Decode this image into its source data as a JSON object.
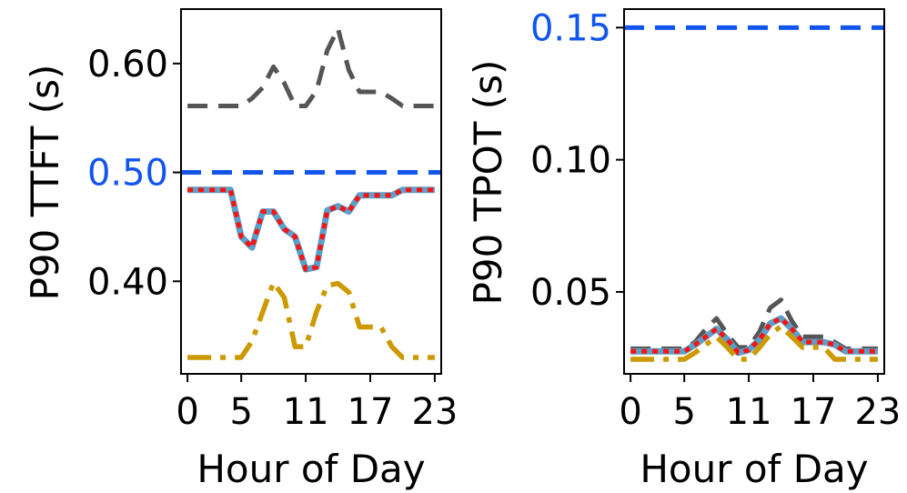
{
  "chart_data": [
    {
      "type": "line",
      "ylabel": "P90 TTFT (s)",
      "xlabel": "Hour of Day",
      "xlim": [
        -0.6,
        23.6
      ],
      "ylim": [
        0.315,
        0.65
      ],
      "xticks": [
        0,
        5,
        11,
        17,
        23
      ],
      "xtick_labels": [
        "0",
        "5",
        "11",
        "17",
        "23"
      ],
      "yticks": [
        0.4,
        0.5,
        0.6
      ],
      "ytick_labels": [
        "0.40",
        "0.50",
        "0.60"
      ],
      "highlight_tick": "0.50",
      "reference_line": {
        "y": 0.5,
        "color": "#1155ee"
      },
      "series": [
        {
          "name": "dark-dashed",
          "color": "#555555",
          "style": "dash",
          "x": [
            0,
            1,
            2,
            3,
            4,
            5,
            6,
            7,
            8,
            9,
            10,
            11,
            12,
            13,
            14,
            15,
            16,
            17,
            18,
            19,
            20,
            21,
            22,
            23
          ],
          "y": [
            0.561,
            0.561,
            0.561,
            0.561,
            0.561,
            0.561,
            0.568,
            0.578,
            0.597,
            0.582,
            0.561,
            0.561,
            0.575,
            0.612,
            0.632,
            0.594,
            0.574,
            0.574,
            0.574,
            0.568,
            0.561,
            0.561,
            0.561,
            0.561
          ]
        },
        {
          "name": "red-dotted",
          "color": "#ff1111",
          "style": "dot",
          "x": [
            0,
            1,
            2,
            3,
            4,
            5,
            6,
            7,
            8,
            9,
            10,
            11,
            12,
            13,
            14,
            15,
            16,
            17,
            18,
            19,
            20,
            21,
            22,
            23
          ],
          "y": [
            0.484,
            0.484,
            0.484,
            0.484,
            0.484,
            0.441,
            0.431,
            0.464,
            0.464,
            0.448,
            0.441,
            0.411,
            0.413,
            0.465,
            0.469,
            0.464,
            0.479,
            0.479,
            0.479,
            0.479,
            0.484,
            0.484,
            0.484,
            0.484
          ]
        },
        {
          "name": "blue-solid",
          "color": "#5aa0c8",
          "style": "solid",
          "x": [
            0,
            1,
            2,
            3,
            4,
            5,
            6,
            7,
            8,
            9,
            10,
            11,
            12,
            13,
            14,
            15,
            16,
            17,
            18,
            19,
            20,
            21,
            22,
            23
          ],
          "y": [
            0.484,
            0.484,
            0.484,
            0.484,
            0.484,
            0.441,
            0.431,
            0.464,
            0.464,
            0.448,
            0.441,
            0.411,
            0.413,
            0.465,
            0.469,
            0.464,
            0.479,
            0.479,
            0.479,
            0.479,
            0.484,
            0.484,
            0.484,
            0.484
          ]
        },
        {
          "name": "gold-dashdot",
          "color": "#cc9900",
          "style": "dashdot",
          "x": [
            0,
            1,
            2,
            3,
            4,
            5,
            6,
            7,
            8,
            9,
            10,
            11,
            12,
            13,
            14,
            15,
            16,
            17,
            18,
            19,
            20,
            21,
            22,
            23
          ],
          "y": [
            0.33,
            0.33,
            0.33,
            0.33,
            0.33,
            0.33,
            0.345,
            0.372,
            0.399,
            0.385,
            0.34,
            0.34,
            0.372,
            0.396,
            0.398,
            0.39,
            0.358,
            0.358,
            0.358,
            0.34,
            0.33,
            0.33,
            0.33,
            0.33
          ]
        }
      ]
    },
    {
      "type": "line",
      "ylabel": "P90 TPOT (s)",
      "xlabel": "Hour of Day",
      "xlim": [
        -0.6,
        23.6
      ],
      "ylim": [
        0.019,
        0.157
      ],
      "xticks": [
        0,
        5,
        11,
        17,
        23
      ],
      "xtick_labels": [
        "0",
        "5",
        "11",
        "17",
        "23"
      ],
      "yticks": [
        0.05,
        0.1,
        0.15
      ],
      "ytick_labels": [
        "0.05",
        "0.10",
        "0.15"
      ],
      "highlight_tick": "0.15",
      "reference_line": {
        "y": 0.15,
        "color": "#1155ee"
      },
      "series": [
        {
          "name": "dark-dashed",
          "color": "#555555",
          "style": "dash",
          "x": [
            0,
            1,
            2,
            3,
            4,
            5,
            6,
            7,
            8,
            9,
            10,
            11,
            12,
            13,
            14,
            15,
            16,
            17,
            18,
            19,
            20,
            21,
            22,
            23
          ],
          "y": [
            0.0285,
            0.0285,
            0.0285,
            0.0285,
            0.0285,
            0.0285,
            0.031,
            0.036,
            0.04,
            0.034,
            0.029,
            0.029,
            0.035,
            0.044,
            0.047,
            0.039,
            0.033,
            0.033,
            0.033,
            0.031,
            0.0285,
            0.0285,
            0.0285,
            0.0285
          ]
        },
        {
          "name": "red-dotted",
          "color": "#ff1111",
          "style": "dot",
          "x": [
            0,
            1,
            2,
            3,
            4,
            5,
            6,
            7,
            8,
            9,
            10,
            11,
            12,
            13,
            14,
            15,
            16,
            17,
            18,
            19,
            20,
            21,
            22,
            23
          ],
          "y": [
            0.0275,
            0.0275,
            0.0275,
            0.0275,
            0.0275,
            0.0275,
            0.03,
            0.033,
            0.036,
            0.032,
            0.027,
            0.028,
            0.032,
            0.038,
            0.04,
            0.036,
            0.031,
            0.031,
            0.031,
            0.03,
            0.0275,
            0.0275,
            0.0275,
            0.0275
          ]
        },
        {
          "name": "blue-solid",
          "color": "#5aa0c8",
          "style": "solid",
          "x": [
            0,
            1,
            2,
            3,
            4,
            5,
            6,
            7,
            8,
            9,
            10,
            11,
            12,
            13,
            14,
            15,
            16,
            17,
            18,
            19,
            20,
            21,
            22,
            23
          ],
          "y": [
            0.0275,
            0.0275,
            0.0275,
            0.0275,
            0.0275,
            0.0275,
            0.03,
            0.033,
            0.036,
            0.032,
            0.027,
            0.028,
            0.032,
            0.038,
            0.04,
            0.036,
            0.031,
            0.031,
            0.031,
            0.03,
            0.0275,
            0.0275,
            0.0275,
            0.0275
          ]
        },
        {
          "name": "gold-dashdot",
          "color": "#cc9900",
          "style": "dashdot",
          "x": [
            0,
            1,
            2,
            3,
            4,
            5,
            6,
            7,
            8,
            9,
            10,
            11,
            12,
            13,
            14,
            15,
            16,
            17,
            18,
            19,
            20,
            21,
            22,
            23
          ],
          "y": [
            0.0245,
            0.0245,
            0.0245,
            0.0245,
            0.0245,
            0.0245,
            0.027,
            0.03,
            0.033,
            0.029,
            0.0245,
            0.0245,
            0.029,
            0.034,
            0.037,
            0.033,
            0.029,
            0.029,
            0.029,
            0.0245,
            0.0245,
            0.0245,
            0.0245,
            0.0245
          ]
        }
      ]
    }
  ]
}
